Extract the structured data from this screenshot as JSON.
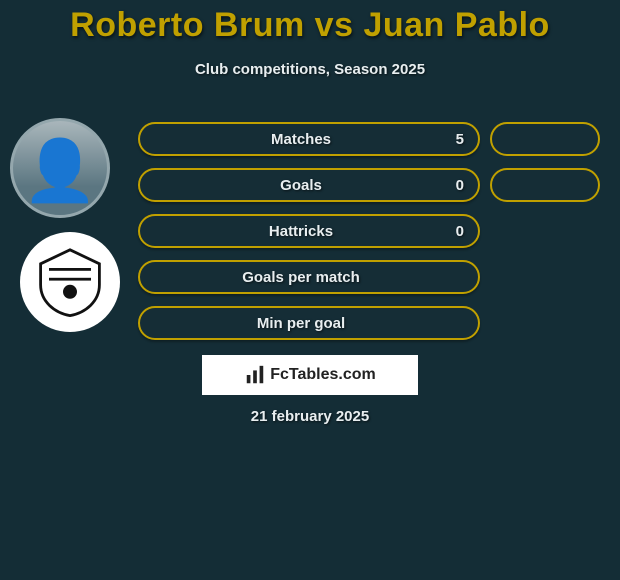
{
  "title_parts": {
    "p1": "Roberto Brum",
    "vs": "vs",
    "p2": "Juan Pablo"
  },
  "title_color": "#c0a000",
  "subtitle": "Club competitions, Season 2025",
  "background_color": "#142d36",
  "pill_border_color": "#c0a000",
  "stats": [
    {
      "label": "Matches",
      "left_value": "5",
      "right_value": "",
      "show_right_pill": true
    },
    {
      "label": "Goals",
      "left_value": "0",
      "right_value": "",
      "show_right_pill": true
    },
    {
      "label": "Hattricks",
      "left_value": "0",
      "right_value": "",
      "show_right_pill": false
    },
    {
      "label": "Goals per match",
      "left_value": "",
      "right_value": "",
      "show_right_pill": false
    },
    {
      "label": "Min per goal",
      "left_value": "",
      "right_value": "",
      "show_right_pill": false
    }
  ],
  "footer_brand": "FcTables.com",
  "date_text": "21 february 2025",
  "player_badge": {
    "icon_semantic": "player-portrait"
  },
  "club_badge": {
    "icon_semantic": "club-crest"
  }
}
